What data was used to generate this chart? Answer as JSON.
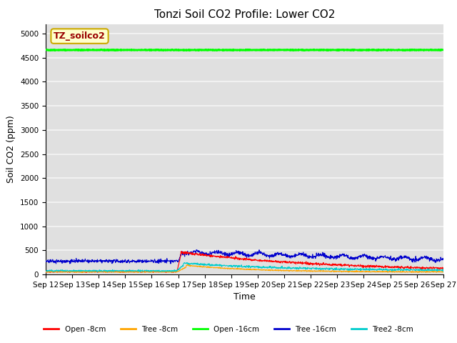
{
  "title": "Tonzi Soil CO2 Profile: Lower CO2",
  "xlabel": "Time",
  "ylabel": "Soil CO2 (ppm)",
  "ylim": [
    0,
    5200
  ],
  "yticks": [
    0,
    500,
    1000,
    1500,
    2000,
    2500,
    3000,
    3500,
    4000,
    4500,
    5000
  ],
  "background_color": "#e0e0e0",
  "grid_color": "#f5f5f5",
  "series": {
    "open_8cm": {
      "color": "#ff0000",
      "label": "Open -8cm",
      "lw": 0.8
    },
    "tree_8cm": {
      "color": "#ffa500",
      "label": "Tree -8cm",
      "lw": 0.8
    },
    "open_16cm": {
      "color": "#00ff00",
      "label": "Open -16cm",
      "lw": 2.0
    },
    "tree_16cm": {
      "color": "#0000cd",
      "label": "Tree -16cm",
      "lw": 0.8
    },
    "tree2_8cm": {
      "color": "#00cccc",
      "label": "Tree2 -8cm",
      "lw": 0.8
    }
  },
  "open_16cm_value": 4660,
  "legend_box_color": "#ffffcc",
  "legend_box_edge": "#ccaa00",
  "legend_box_text": "TZ_soilco2",
  "legend_box_text_color": "#990000",
  "title_fontsize": 11,
  "axis_fontsize": 9,
  "tick_fontsize": 7.5
}
